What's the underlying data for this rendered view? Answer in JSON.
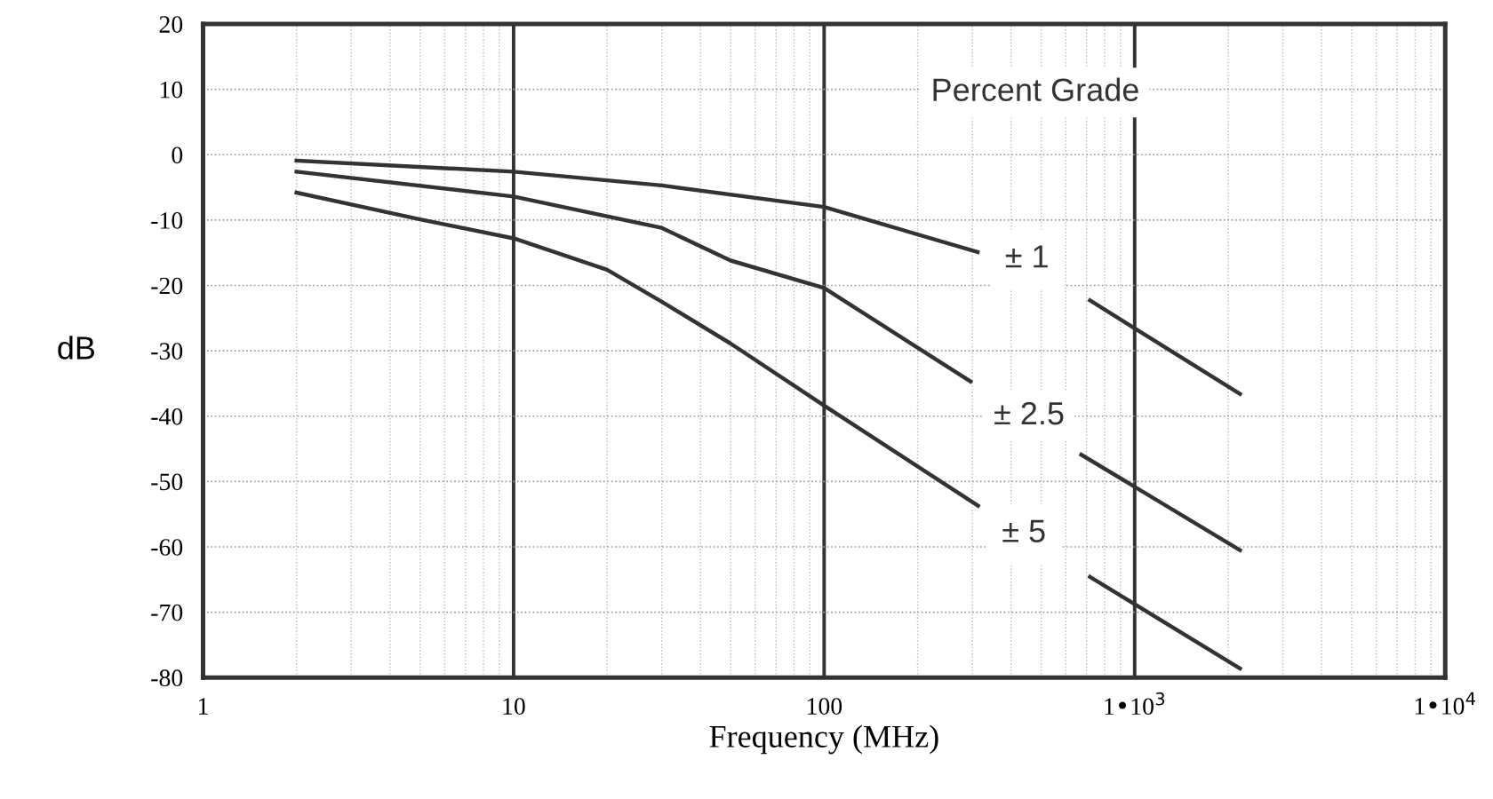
{
  "chart_data": {
    "type": "line",
    "xlabel": "Frequency (MHz)",
    "ylabel": "dB",
    "log": "x",
    "xlim": [
      1,
      10000
    ],
    "ylim": [
      -80,
      20
    ],
    "xticks": [
      1,
      10,
      100,
      {
        "value": 1000,
        "label": "1•10$^{3}$"
      },
      {
        "value": 10000,
        "label": "1•10$^{4}$"
      }
    ],
    "yticks": [
      -80,
      -70,
      -60,
      -50,
      -40,
      -30,
      -20,
      -10,
      0,
      10,
      20
    ],
    "grid": true,
    "marker": "none",
    "line_style": "solid",
    "series": [
      {
        "color": "#333333",
        "x": [
          2,
          10,
          30,
          100,
          312,
          500,
          718,
          2183
        ],
        "values": [
          -0.9,
          -2.6,
          -4.7,
          -8.0,
          -14.9,
          null,
          -22.3,
          -36.6
        ]
      },
      {
        "color": "#333333",
        "x": [
          2,
          10,
          30,
          50,
          100,
          296,
          450,
          673,
          2183
        ],
        "values": [
          -2.6,
          -6.4,
          -11.2,
          -16.2,
          -20.4,
          -34.7,
          null,
          -45.9,
          -60.5
        ]
      },
      {
        "color": "#333333",
        "x": [
          2,
          5,
          10,
          20,
          30,
          50,
          100,
          313,
          500,
          718,
          2183
        ],
        "values": [
          -5.8,
          -9.9,
          -12.8,
          -17.6,
          -22.5,
          -28.9,
          -38.4,
          -53.7,
          null,
          -64.6,
          -78.6
        ]
      }
    ],
    "annotations": [
      "Percent Grade",
      {
        "text": "± 1",
        "x": 450,
        "y": -16
      },
      "± 2.5",
      {
        "text": "± 5",
        "x": 440,
        "y": -58
      }
    ]
  }
}
